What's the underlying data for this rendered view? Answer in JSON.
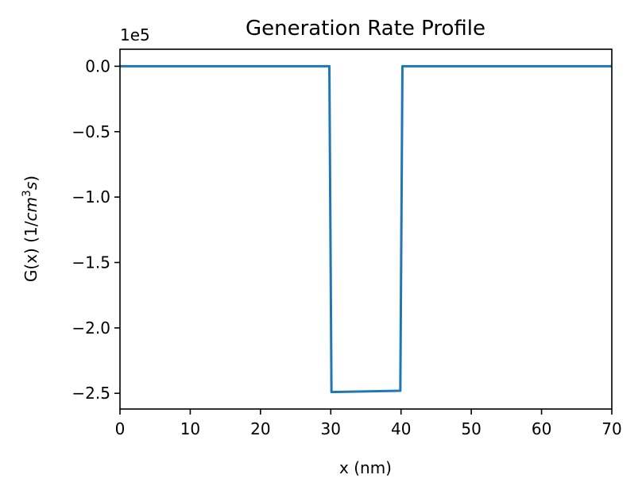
{
  "chart_data": {
    "type": "line",
    "title": "Generation Rate Profile",
    "xlabel": "x (nm)",
    "ylabel": "G(x) (1/cm³s)",
    "y_offset_label": "1e5",
    "xlim": [
      0,
      70
    ],
    "ylim": [
      -2.62,
      0.13
    ],
    "x_ticks": [
      0,
      10,
      20,
      30,
      40,
      50,
      60,
      70
    ],
    "x_tick_labels": [
      "0",
      "10",
      "20",
      "30",
      "40",
      "50",
      "60",
      "70"
    ],
    "y_ticks": [
      0.0,
      -0.5,
      -1.0,
      -1.5,
      -2.0,
      -2.5
    ],
    "y_tick_labels": [
      "0.0",
      "−0.5",
      "−1.0",
      "−1.5",
      "−2.0",
      "−2.5"
    ],
    "grid": false,
    "series": [
      {
        "color": "#1f77b4",
        "x": [
          0,
          29.8,
          30.1,
          39.9,
          40.2,
          70
        ],
        "y": [
          0.0,
          0.0,
          -2.49,
          -2.48,
          0.0,
          0.0
        ]
      }
    ]
  }
}
